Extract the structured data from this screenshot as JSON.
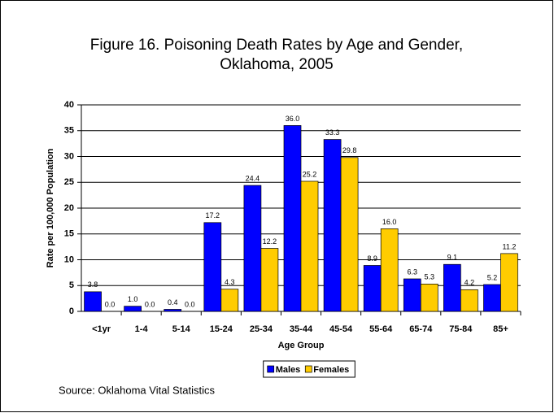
{
  "chart_data": {
    "type": "bar",
    "title": "Figure 16. Poisoning Death Rates by Age and Gender, Oklahoma, 2005",
    "ylabel": "Rate per 100,000 Population",
    "xlabel": "Age Group",
    "source": "Source: Oklahoma Vital Statistics",
    "categories": [
      "<1yr",
      "1-4",
      "5-14",
      "15-24",
      "25-34",
      "35-44",
      "45-54",
      "55-64",
      "65-74",
      "75-84",
      "85+"
    ],
    "series": [
      {
        "name": "Males",
        "color": "#0000ff",
        "values": [
          3.8,
          1,
          0.4,
          17.2,
          24.4,
          36,
          33.3,
          8.9,
          6.3,
          9.1,
          5.2
        ],
        "value_labels": [
          "3.8",
          "1.0",
          "0.4",
          "17.2",
          "24.4",
          "36.0",
          "33.3",
          "8.9",
          "6.3",
          "9.1",
          "5.2"
        ]
      },
      {
        "name": "Females",
        "color": "#ffcc00",
        "values": [
          0,
          0,
          0,
          4.3,
          12.2,
          25.2,
          29.8,
          16,
          5.3,
          4.2,
          11.2
        ],
        "value_labels": [
          "0.0",
          "0.0",
          "0.0",
          "4.3",
          "12.2",
          "25.2",
          "29.8",
          "16.0",
          "5.3",
          "4.2",
          "11.2"
        ]
      }
    ],
    "ylim": [
      0,
      40
    ],
    "yticks": [
      0,
      5,
      10,
      15,
      20,
      25,
      30,
      35,
      40
    ],
    "grid": true,
    "legend": "bottom"
  }
}
